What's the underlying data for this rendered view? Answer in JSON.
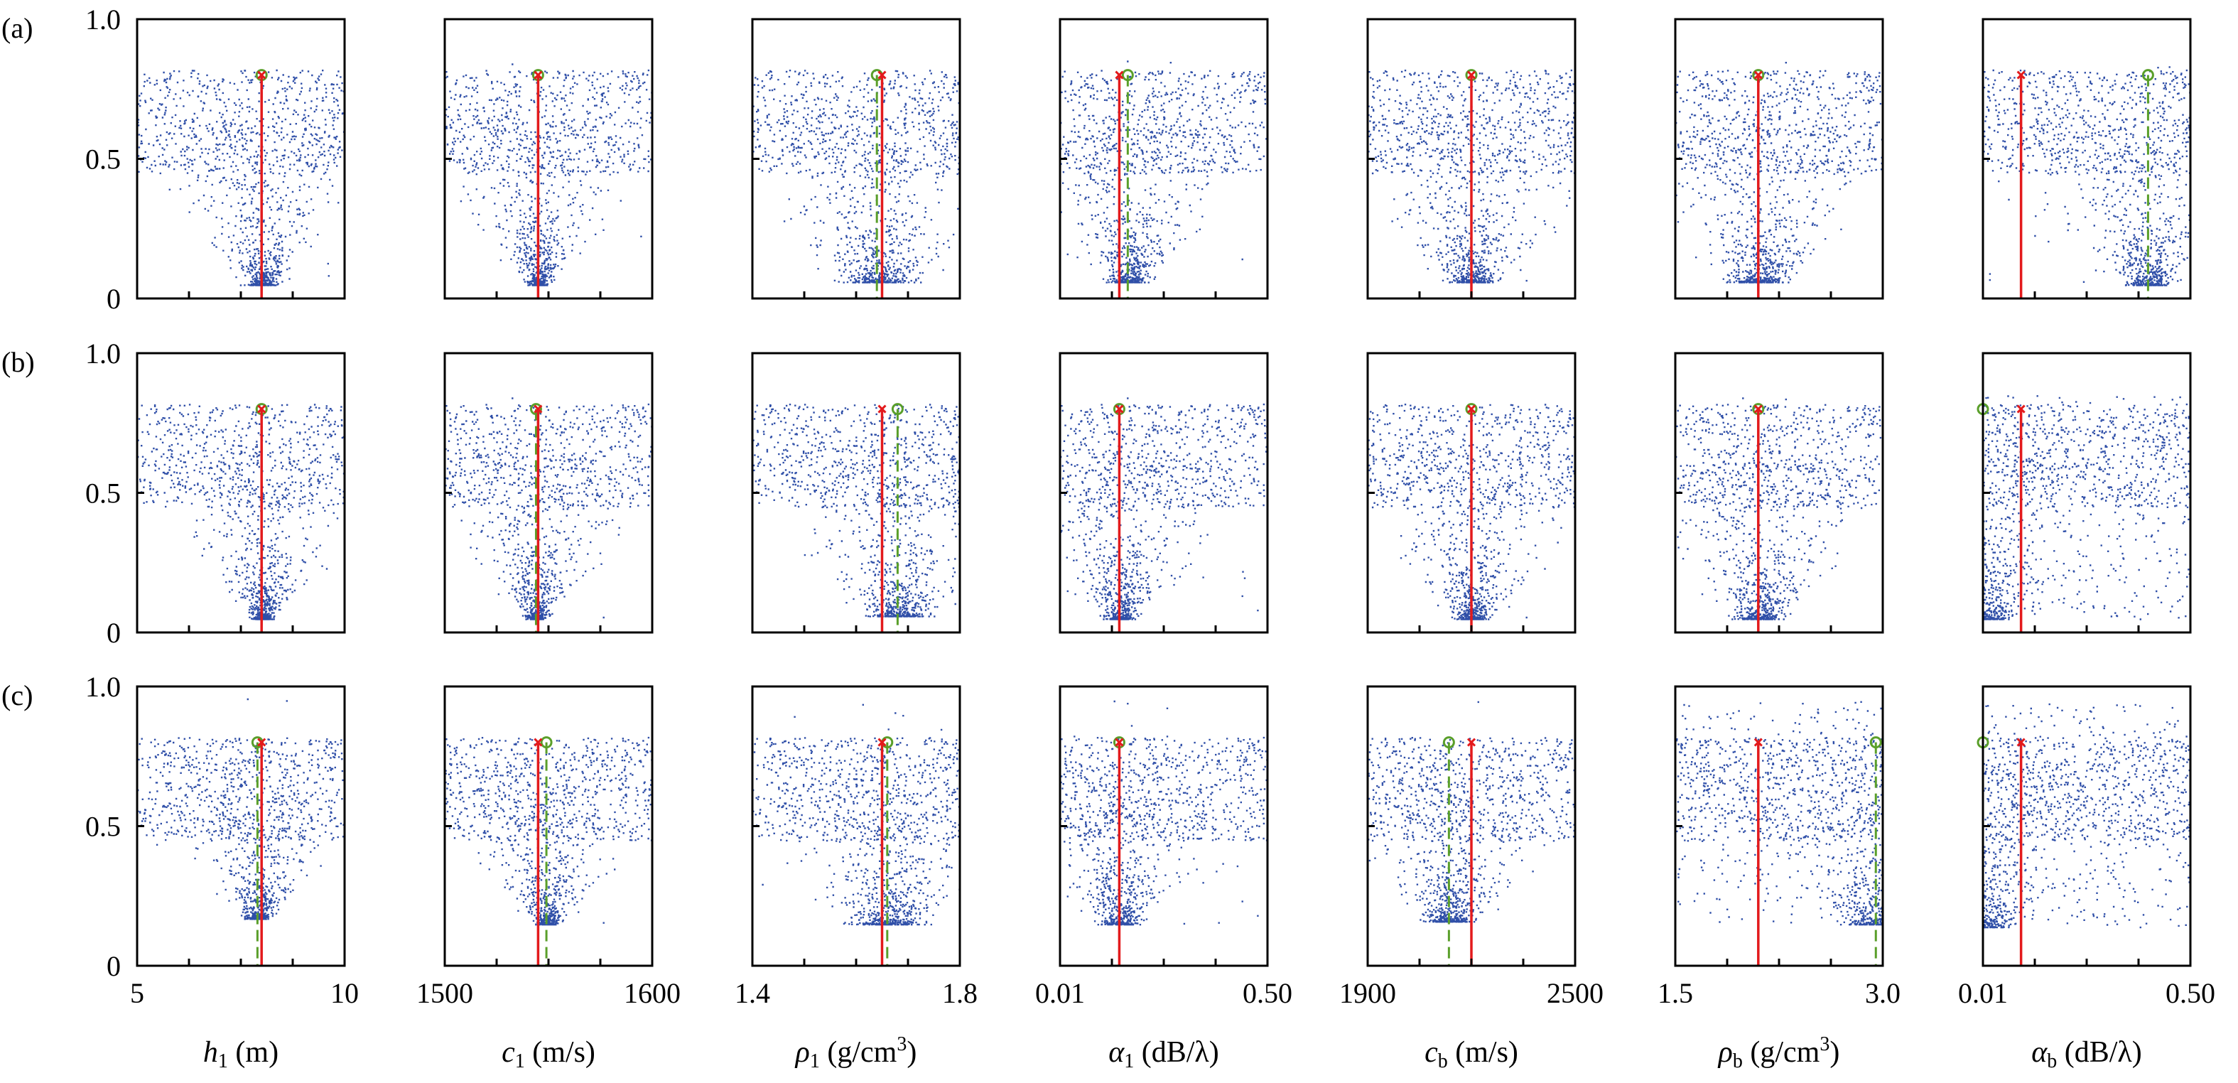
{
  "figure": {
    "row_labels": [
      "(a)",
      "(b)",
      "(c)"
    ],
    "y_ticks": [
      "1.0",
      "0.5",
      "0"
    ],
    "x_labels": [
      {
        "base": "h",
        "sub": "1",
        "unit": " (m)",
        "italic": true
      },
      {
        "base": "c",
        "sub": "1",
        "unit": " (m/s)",
        "italic": true
      },
      {
        "base": "ρ",
        "sub": "1",
        "unit": " (g/cm",
        "sup": "3",
        "tail": ")",
        "italic": true
      },
      {
        "base": "α",
        "sub": "1",
        "unit": " (dB/λ)",
        "italic": true
      },
      {
        "base": "c",
        "sub": "b",
        "unit": " (m/s)",
        "italic": true
      },
      {
        "base": "ρ",
        "sub": "b",
        "unit": " (g/cm",
        "sup": "3",
        "tail": ")",
        "italic": true
      },
      {
        "base": "α",
        "sub": "b",
        "unit": " (dB/λ)",
        "italic": true
      }
    ],
    "x_ticks": [
      [
        "5",
        "10"
      ],
      [
        "1500",
        "1600"
      ],
      [
        "1.4",
        "1.8"
      ],
      [
        "0.01",
        "0.50"
      ],
      [
        "1900",
        "2500"
      ],
      [
        "1.5",
        "3.0"
      ],
      [
        "0.01",
        "0.50"
      ]
    ]
  },
  "chart_data": {
    "type": "scatter",
    "y_range": [
      0,
      1.0
    ],
    "x_ranges": [
      [
        5,
        10
      ],
      [
        1500,
        1600
      ],
      [
        1.4,
        1.8
      ],
      [
        0.01,
        0.5
      ],
      [
        1900,
        2500
      ],
      [
        1.5,
        3.0
      ],
      [
        0.01,
        0.5
      ]
    ],
    "grid": false,
    "colors": {
      "points": "#2f4fa8",
      "true_line": "#e31a1c",
      "estimate_line": "#5a9f2a"
    },
    "rows": [
      {
        "label": "(a)",
        "true_values": [
          8,
          1545,
          1.65,
          0.15,
          2200,
          2.1,
          0.1
        ],
        "estimates": [
          8,
          1545,
          1.64,
          0.17,
          2200,
          2.1,
          0.4
        ],
        "min_misfit": [
          0.05,
          0.05,
          0.06,
          0.06,
          0.06,
          0.06,
          0.05
        ],
        "funnel_width": [
          0.3,
          4,
          0.06,
          0.04,
          60,
          0.18,
          0.05
        ]
      },
      {
        "label": "(b)",
        "true_values": [
          8,
          1545,
          1.65,
          0.15,
          2200,
          2.1,
          0.1
        ],
        "estimates": [
          8,
          1544,
          1.68,
          0.15,
          2200,
          2.1,
          0.01
        ],
        "min_misfit": [
          0.05,
          0.05,
          0.06,
          0.05,
          0.05,
          0.05,
          0.05
        ],
        "funnel_width": [
          0.2,
          4,
          0.05,
          0.03,
          40,
          0.15,
          0.05
        ]
      },
      {
        "label": "(c)",
        "true_values": [
          8,
          1545,
          1.65,
          0.15,
          2200,
          2.1,
          0.1
        ],
        "estimates": [
          7.9,
          1549,
          1.66,
          0.15,
          2135,
          2.95,
          0.01
        ],
        "min_misfit": [
          0.17,
          0.15,
          0.15,
          0.15,
          0.16,
          0.15,
          0.14
        ],
        "funnel_width": [
          0.25,
          5,
          0.06,
          0.04,
          60,
          0.2,
          0.05
        ]
      }
    ],
    "points_per_panel": 1300
  }
}
